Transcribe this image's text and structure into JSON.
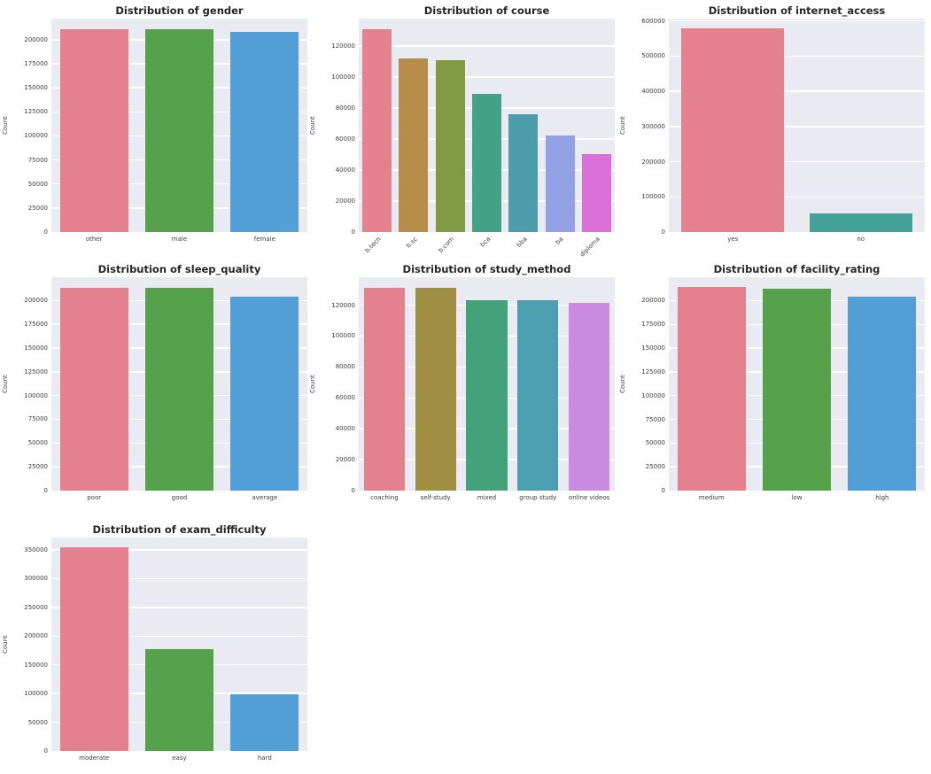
{
  "figure": {
    "background": "#ffffff",
    "axes_background": "#eaeaf2",
    "grid_color": "#ffffff",
    "title_color": "#262626",
    "tick_color": "#3d3d3d"
  },
  "chart_data": [
    {
      "type": "bar",
      "title": "Distribution of gender",
      "xlabel": "",
      "ylabel": "Count",
      "categories": [
        "other",
        "male",
        "female"
      ],
      "values": [
        211500,
        210800,
        208500
      ],
      "colors": [
        "#e5808f",
        "#55a14c",
        "#519fd6"
      ],
      "yticks": [
        0,
        25000,
        50000,
        75000,
        100000,
        125000,
        150000,
        175000,
        200000
      ],
      "ylim": [
        0,
        222100
      ],
      "xtick_rotation": 0,
      "grid": true,
      "legend": false
    },
    {
      "type": "bar",
      "title": "Distribution of course",
      "xlabel": "",
      "ylabel": "Count",
      "categories": [
        "b.tech",
        "b.sc",
        "b.com",
        "bca",
        "bba",
        "ba",
        "diploma"
      ],
      "values": [
        131000,
        112000,
        111000,
        89000,
        76000,
        62500,
        50300
      ],
      "colors": [
        "#e5808f",
        "#b68c48",
        "#7f9a42",
        "#43a286",
        "#4b9dab",
        "#93a0e3",
        "#dd70d8"
      ],
      "yticks": [
        0,
        20000,
        40000,
        60000,
        80000,
        100000,
        120000
      ],
      "ylim": [
        0,
        137600
      ],
      "xtick_rotation": 45,
      "grid": true,
      "legend": false
    },
    {
      "type": "bar",
      "title": "Distribution of internet_access",
      "xlabel": "",
      "ylabel": "Count",
      "categories": [
        "yes",
        "no"
      ],
      "values": [
        578000,
        52500
      ],
      "colors": [
        "#e5808f",
        "#44a199"
      ],
      "yticks": [
        0,
        100000,
        200000,
        300000,
        400000,
        500000,
        600000
      ],
      "ylim": [
        0,
        606900
      ],
      "xtick_rotation": 0,
      "grid": true,
      "legend": false
    },
    {
      "type": "bar",
      "title": "Distribution of sleep_quality",
      "xlabel": "",
      "ylabel": "Count",
      "categories": [
        "poor",
        "good",
        "average"
      ],
      "values": [
        213800,
        213300,
        203700
      ],
      "colors": [
        "#e5808f",
        "#55a14c",
        "#519fd6"
      ],
      "yticks": [
        0,
        25000,
        50000,
        75000,
        100000,
        125000,
        150000,
        175000,
        200000
      ],
      "ylim": [
        0,
        224500
      ],
      "xtick_rotation": 0,
      "grid": true,
      "legend": false
    },
    {
      "type": "bar",
      "title": "Distribution of study_method",
      "xlabel": "",
      "ylabel": "Count",
      "categories": [
        "coaching",
        "self-study",
        "mixed",
        "group study",
        "online videos"
      ],
      "values": [
        131500,
        131000,
        123000,
        123000,
        121500
      ],
      "colors": [
        "#e5808f",
        "#a08f42",
        "#43a279",
        "#4b9fb0",
        "#c98ae0"
      ],
      "yticks": [
        0,
        20000,
        40000,
        60000,
        80000,
        100000,
        120000
      ],
      "ylim": [
        0,
        138100
      ],
      "xtick_rotation": 0,
      "grid": true,
      "legend": false
    },
    {
      "type": "bar",
      "title": "Distribution of facility_rating",
      "xlabel": "",
      "ylabel": "Count",
      "categories": [
        "medium",
        "low",
        "high"
      ],
      "values": [
        214000,
        213000,
        204000
      ],
      "colors": [
        "#e5808f",
        "#55a14c",
        "#519fd6"
      ],
      "yticks": [
        0,
        25000,
        50000,
        75000,
        100000,
        125000,
        150000,
        175000,
        200000
      ],
      "ylim": [
        0,
        224700
      ],
      "xtick_rotation": 0,
      "grid": true,
      "legend": false
    },
    {
      "type": "bar",
      "title": "Distribution of exam_difficulty",
      "xlabel": "",
      "ylabel": "Count",
      "categories": [
        "moderate",
        "easy",
        "hard"
      ],
      "values": [
        354000,
        177000,
        99500
      ],
      "colors": [
        "#e5808f",
        "#55a14c",
        "#519fd6"
      ],
      "yticks": [
        0,
        50000,
        100000,
        150000,
        200000,
        250000,
        300000,
        350000
      ],
      "ylim": [
        0,
        371700
      ],
      "xtick_rotation": 0,
      "grid": true,
      "legend": false
    }
  ]
}
